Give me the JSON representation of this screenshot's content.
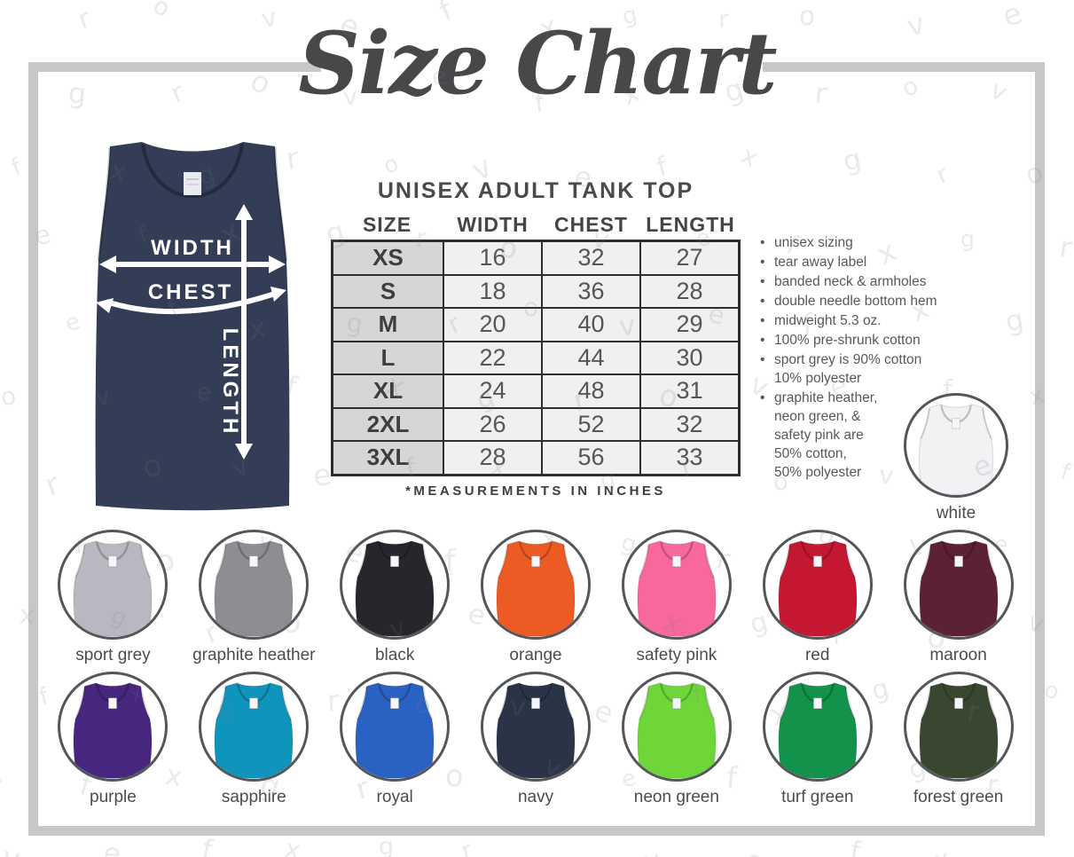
{
  "title": "Size Chart",
  "product": {
    "heading": "UNISEX ADULT TANK TOP",
    "measurements_note": "*MEASUREMENTS IN INCHES"
  },
  "diagram": {
    "width_label": "WIDTH",
    "chest_label": "CHEST",
    "length_label": "LENGTH",
    "shirt_color": "#333d55"
  },
  "size_table": {
    "columns": [
      "SIZE",
      "WIDTH",
      "CHEST",
      "LENGTH"
    ],
    "rows": [
      {
        "size": "XS",
        "width": "16",
        "chest": "32",
        "length": "27"
      },
      {
        "size": "S",
        "width": "18",
        "chest": "36",
        "length": "28"
      },
      {
        "size": "M",
        "width": "20",
        "chest": "40",
        "length": "29"
      },
      {
        "size": "L",
        "width": "22",
        "chest": "44",
        "length": "30"
      },
      {
        "size": "XL",
        "width": "24",
        "chest": "48",
        "length": "31"
      },
      {
        "size": "2XL",
        "width": "26",
        "chest": "52",
        "length": "32"
      },
      {
        "size": "3XL",
        "width": "28",
        "chest": "56",
        "length": "33"
      }
    ]
  },
  "features": [
    "unisex sizing",
    "tear away label",
    "banded neck & armholes",
    "double needle bottom hem",
    "midweight 5.3 oz.",
    "100% pre-shrunk cotton",
    "sport grey is 90% cotton\n10% polyester",
    "graphite heather,\nneon green, &\nsafety pink are\n50% cotton,\n50% polyester"
  ],
  "white_swatch": {
    "label": "white",
    "color": "#f2f1f4"
  },
  "swatch_rows": [
    [
      {
        "label": "sport grey",
        "color": "#b8b8c0"
      },
      {
        "label": "graphite heather",
        "color": "#8e8d92"
      },
      {
        "label": "black",
        "color": "#26262c"
      },
      {
        "label": "orange",
        "color": "#ec5b23"
      },
      {
        "label": "safety pink",
        "color": "#f8689d"
      },
      {
        "label": "red",
        "color": "#c41732"
      },
      {
        "label": "maroon",
        "color": "#5c2134"
      }
    ],
    [
      {
        "label": "purple",
        "color": "#46267e"
      },
      {
        "label": "sapphire",
        "color": "#0f94bc"
      },
      {
        "label": "royal",
        "color": "#2a62c4"
      },
      {
        "label": "navy",
        "color": "#2b3347"
      },
      {
        "label": "neon green",
        "color": "#6fd639"
      },
      {
        "label": "turf green",
        "color": "#12924a"
      },
      {
        "label": "forest green",
        "color": "#3a4730"
      }
    ]
  ],
  "watermark_text": "grovefx",
  "frame_color": "#c7c7c8"
}
